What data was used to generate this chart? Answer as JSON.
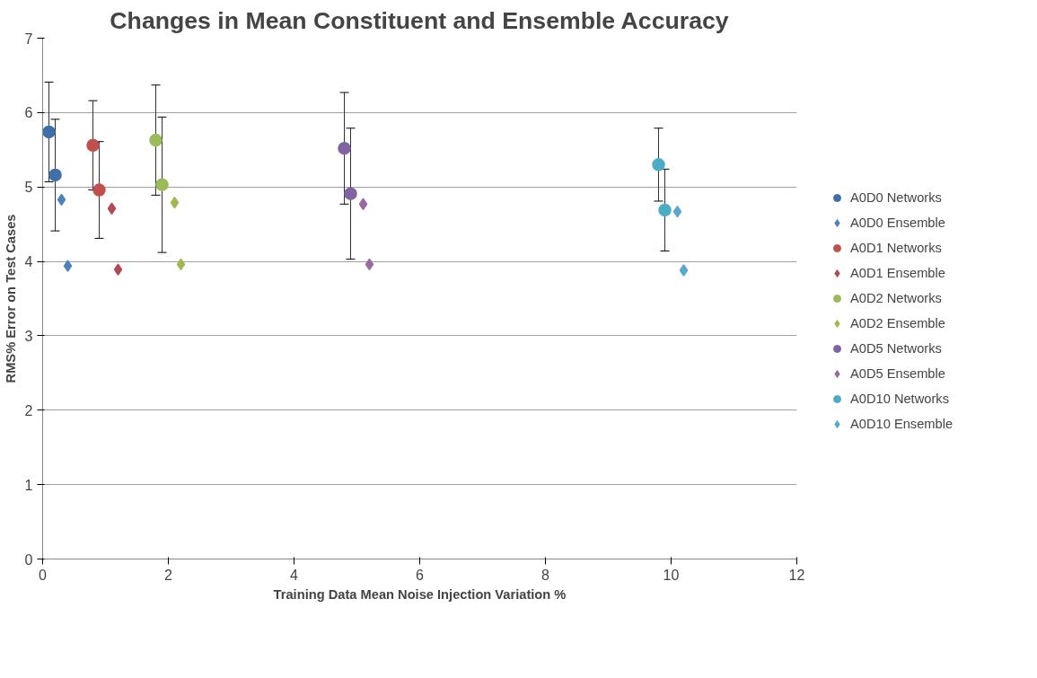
{
  "chart_data": {
    "type": "scatter",
    "title": "Changes in Mean Constituent and Ensemble Accuracy",
    "xlabel": "Training Data Mean Noise Injection Variation %",
    "ylabel": "RMS% Error on Test Cases",
    "xlim": [
      0,
      12
    ],
    "xticks": [
      0,
      2,
      4,
      6,
      8,
      10,
      12
    ],
    "ylim": [
      0,
      7
    ],
    "yticks": [
      0,
      1,
      2,
      3,
      4,
      5,
      6,
      7
    ],
    "grid": "y",
    "legend": "right",
    "series": [
      {
        "name": "A0D0 Networks",
        "color": "#3f6fa8",
        "marker": "circle",
        "x": [
          0.1,
          0.2
        ],
        "values": [
          5.74,
          5.16
        ],
        "errors": [
          0.67,
          0.75
        ]
      },
      {
        "name": "A0D0 Ensemble",
        "color": "#4f81bd",
        "marker": "diamond",
        "x": [
          0.3,
          0.4
        ],
        "values": [
          4.83,
          3.94
        ]
      },
      {
        "name": "A0D1 Networks",
        "color": "#c0504d",
        "marker": "circle",
        "x": [
          0.8,
          0.9
        ],
        "values": [
          5.56,
          4.96
        ],
        "errors": [
          0.6,
          0.65
        ]
      },
      {
        "name": "A0D1 Ensemble",
        "color": "#b04a55",
        "marker": "diamond",
        "x": [
          1.1,
          1.2
        ],
        "values": [
          4.71,
          3.89
        ]
      },
      {
        "name": "A0D2 Networks",
        "color": "#9bbb59",
        "marker": "circle",
        "x": [
          1.8,
          1.9
        ],
        "values": [
          5.63,
          5.03
        ],
        "errors": [
          0.74,
          0.91
        ]
      },
      {
        "name": "A0D2 Ensemble",
        "color": "#a0b850",
        "marker": "diamond",
        "x": [
          2.1,
          2.2
        ],
        "values": [
          4.79,
          3.96
        ]
      },
      {
        "name": "A0D5 Networks",
        "color": "#8064a2",
        "marker": "circle",
        "x": [
          4.8,
          4.9
        ],
        "values": [
          5.52,
          4.91
        ],
        "errors": [
          0.75,
          0.88
        ]
      },
      {
        "name": "A0D5 Ensemble",
        "color": "#9a6aa0",
        "marker": "diamond",
        "x": [
          5.1,
          5.2
        ],
        "values": [
          4.77,
          3.96
        ]
      },
      {
        "name": "A0D10 Networks",
        "color": "#4bacc6",
        "marker": "circle",
        "x": [
          9.8,
          9.9
        ],
        "values": [
          5.3,
          4.69
        ],
        "errors": [
          0.49,
          0.55
        ]
      },
      {
        "name": "A0D10 Ensemble",
        "color": "#5aa8cc",
        "marker": "diamond",
        "x": [
          10.1,
          10.2
        ],
        "values": [
          4.67,
          3.88
        ]
      }
    ]
  }
}
